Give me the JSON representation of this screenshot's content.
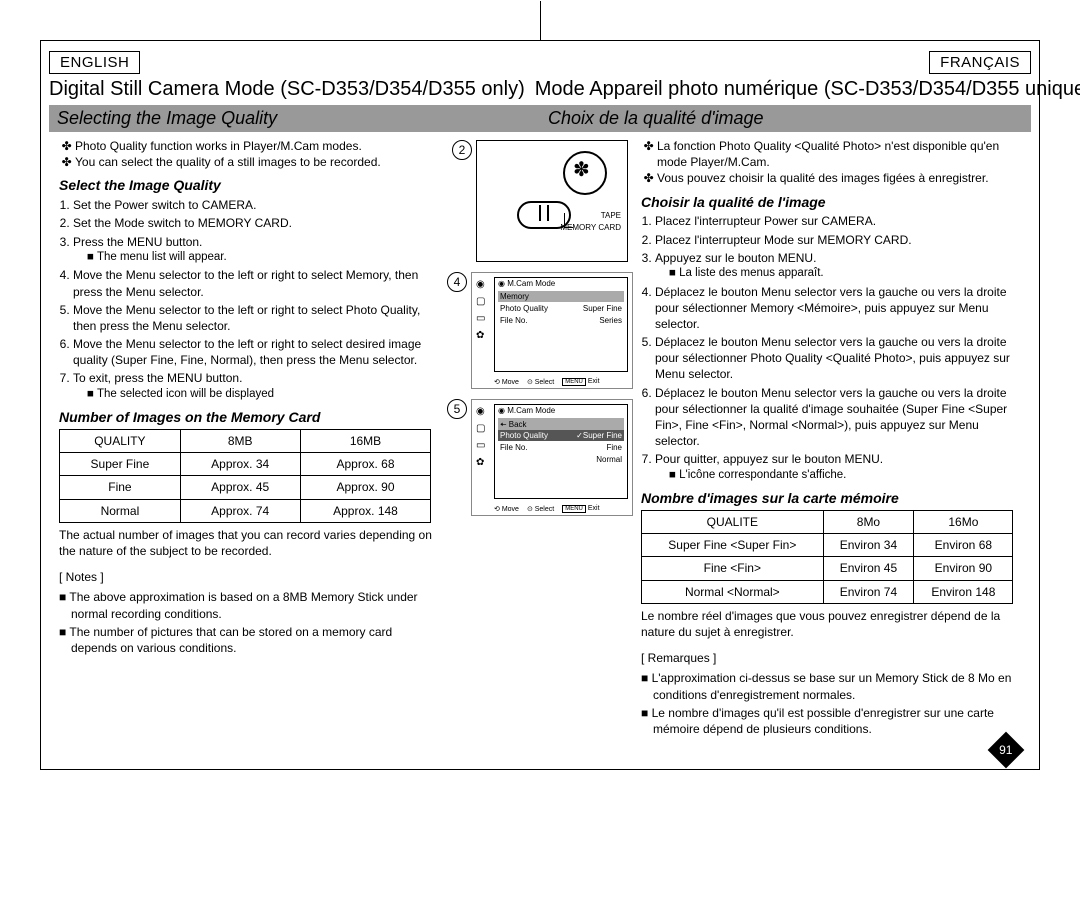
{
  "lang_left": "ENGLISH",
  "lang_right": "FRANÇAIS",
  "title_en": "Digital Still Camera Mode (SC-D353/D354/D355 only)",
  "title_fr": "Mode Appareil photo numérique (SC-D353/D354/D355 uniquement)",
  "section_en": "Selecting the Image Quality",
  "section_fr": "Choix de la qualité d'image",
  "page_number": "91",
  "en": {
    "intro1": "Photo Quality function works in Player/M.Cam modes.",
    "intro2": "You can select the quality of a still images to be recorded.",
    "sub1": "Select the Image Quality",
    "s1": "Set the Power switch to CAMERA.",
    "s2": "Set the Mode switch to MEMORY CARD.",
    "s3": "Press the MENU button.",
    "s3b": "The menu list will appear.",
    "s4": "Move the Menu selector to the left or right to select Memory, then press the Menu selector.",
    "s5": "Move the Menu selector to the left or right to select Photo Quality, then press the Menu selector.",
    "s6": "Move the Menu selector to the left or right to select desired image quality (Super Fine, Fine, Normal), then press the Menu selector.",
    "s7": "To exit, press the MENU button.",
    "s7b": "The selected icon will be displayed",
    "sub2": "Number of Images on the Memory Card",
    "th1": "QUALITY",
    "th2": "8MB",
    "th3": "16MB",
    "r1c1": "Super Fine",
    "r1c2": "Approx. 34",
    "r1c3": "Approx. 68",
    "r2c1": "Fine",
    "r2c2": "Approx. 45",
    "r2c3": "Approx. 90",
    "r3c1": "Normal",
    "r3c2": "Approx. 74",
    "r3c3": "Approx. 148",
    "foot": "The actual number of images that you can record varies depending on the nature of the subject to be recorded.",
    "notesh": "[ Notes ]",
    "n1": "■ The above approximation is based on a 8MB Memory Stick under normal recording conditions.",
    "n2": "■ The number of pictures that can be stored on a memory card depends on various conditions."
  },
  "fr": {
    "intro1": "La fonction Photo Quality <Qualité Photo> n'est disponible qu'en mode Player/M.Cam.",
    "intro2": "Vous pouvez choisir la qualité des images figées à enregistrer.",
    "sub1": "Choisir la qualité de l'image",
    "s1": "Placez l'interrupteur Power sur CAMERA.",
    "s2": "Placez l'interrupteur Mode sur MEMORY CARD.",
    "s3": "Appuyez sur le bouton MENU.",
    "s3b": "La liste des menus apparaît.",
    "s4": "Déplacez le bouton Menu selector vers la gauche ou vers la droite pour sélectionner Memory <Mémoire>, puis appuyez sur Menu selector.",
    "s5": "Déplacez le bouton Menu selector vers la gauche ou vers la droite pour sélectionner Photo Quality <Qualité Photo>, puis appuyez sur Menu selector.",
    "s6": "Déplacez le bouton Menu selector vers la gauche ou vers la droite pour sélectionner la qualité d'image souhaitée (Super Fine <Super Fin>, Fine <Fin>, Normal <Normal>), puis appuyez sur Menu selector.",
    "s7": "Pour quitter, appuyez sur le bouton MENU.",
    "s7b": "L'icône correspondante s'affiche.",
    "sub2": "Nombre d'images sur la carte mémoire",
    "th1": "QUALITE",
    "th2": "8Mo",
    "th3": "16Mo",
    "r1c1": "Super Fine <Super Fin>",
    "r1c2": "Environ 34",
    "r1c3": "Environ 68",
    "r2c1": "Fine <Fin>",
    "r2c2": "Environ 45",
    "r2c3": "Environ 90",
    "r3c1": "Normal <Normal>",
    "r3c2": "Environ 74",
    "r3c3": "Environ 148",
    "foot": "Le nombre réel d'images que vous pouvez enregistrer dépend de la nature du sujet à enregistrer.",
    "notesh": "[ Remarques ]",
    "n1": "■ L'approximation ci-dessus se base sur un Memory Stick de 8 Mo en conditions d'enregistrement normales.",
    "n2": "■ Le nombre d'images qu'il est possible d'enregistrer sur une carte mémoire dépend de plusieurs conditions."
  },
  "fig": {
    "n2": "2",
    "n4": "4",
    "n5": "5",
    "tape": "TAPE",
    "memcard": "MEMORY CARD",
    "mcam": "M.Cam Mode",
    "memory": "Memory",
    "back": "Back",
    "pq": "Photo Quality",
    "sf": "Super Fine",
    "fine": "Fine",
    "normal": "Normal",
    "fileno": "File No.",
    "series": "Series",
    "move": "Move",
    "select": "Select",
    "exit": "Exit",
    "menu": "MENU",
    "check_sf": "✓Super Fine"
  }
}
